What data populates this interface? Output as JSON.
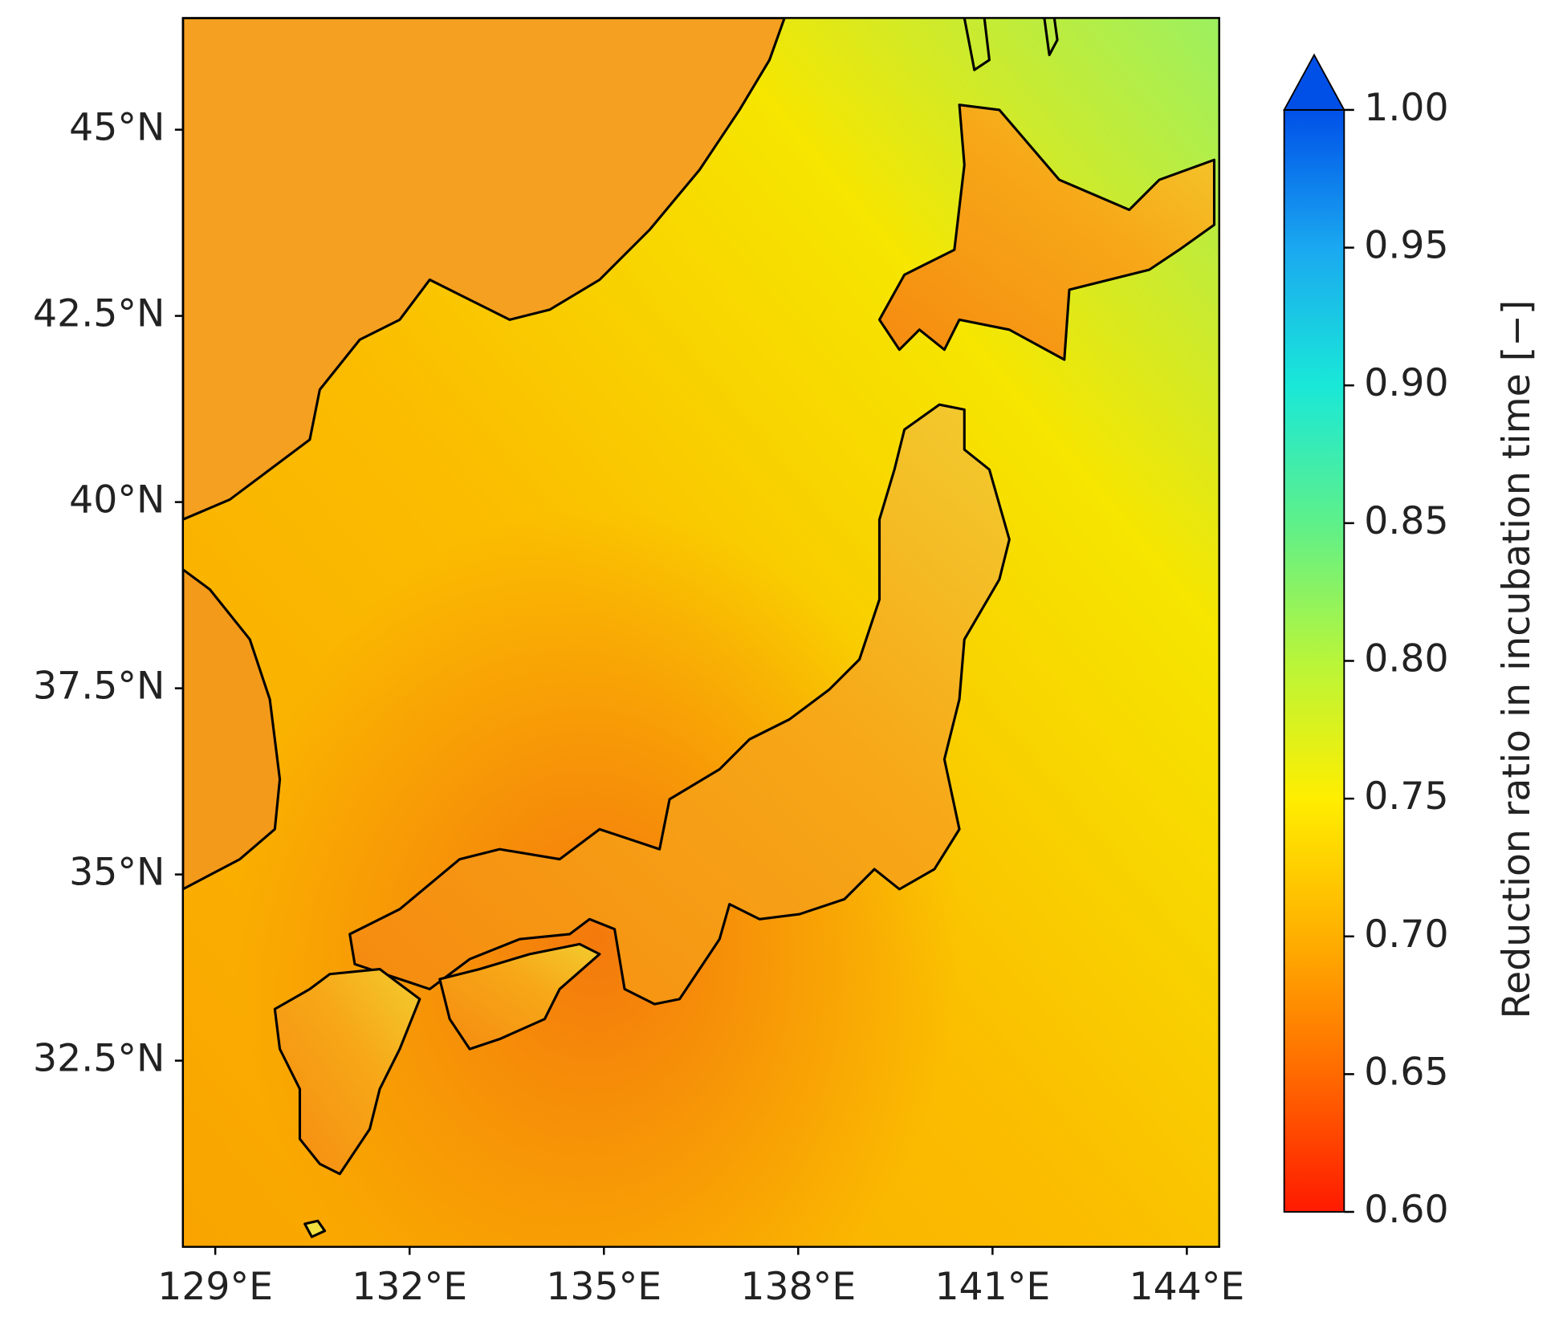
{
  "chart_data": {
    "type": "map",
    "xlim": [
      128.5,
      144.5
    ],
    "ylim": [
      30,
      46.5
    ],
    "xticks": [
      {
        "value": 129,
        "label": "129°E"
      },
      {
        "value": 132,
        "label": "132°E"
      },
      {
        "value": 135,
        "label": "135°E"
      },
      {
        "value": 138,
        "label": "138°E"
      },
      {
        "value": 141,
        "label": "141°E"
      },
      {
        "value": 144,
        "label": "144°E"
      }
    ],
    "yticks": [
      {
        "value": 32.5,
        "label": "32.5°N"
      },
      {
        "value": 35,
        "label": "35°N"
      },
      {
        "value": 37.5,
        "label": "37.5°N"
      },
      {
        "value": 40,
        "label": "40°N"
      },
      {
        "value": 42.5,
        "label": "42.5°N"
      },
      {
        "value": 45,
        "label": "45°N"
      }
    ],
    "colorbar": {
      "label": "Reduction ratio in incubation time [−]",
      "lim": [
        0.6,
        1.0
      ],
      "extend": "max",
      "colors": [
        "#ff1a00",
        "#ff6a00",
        "#ffb000",
        "#ffee00",
        "#b8f53a",
        "#5ef08a",
        "#19e8d8",
        "#1aa8f0",
        "#0050e8"
      ],
      "ticks": [
        {
          "value": 0.6,
          "label": "0.60"
        },
        {
          "value": 0.65,
          "label": "0.65"
        },
        {
          "value": 0.7,
          "label": "0.70"
        },
        {
          "value": 0.75,
          "label": "0.75"
        },
        {
          "value": 0.8,
          "label": "0.80"
        },
        {
          "value": 0.85,
          "label": "0.85"
        },
        {
          "value": 0.9,
          "label": "0.90"
        },
        {
          "value": 0.95,
          "label": "0.95"
        },
        {
          "value": 1.0,
          "label": "1.00"
        }
      ]
    }
  }
}
